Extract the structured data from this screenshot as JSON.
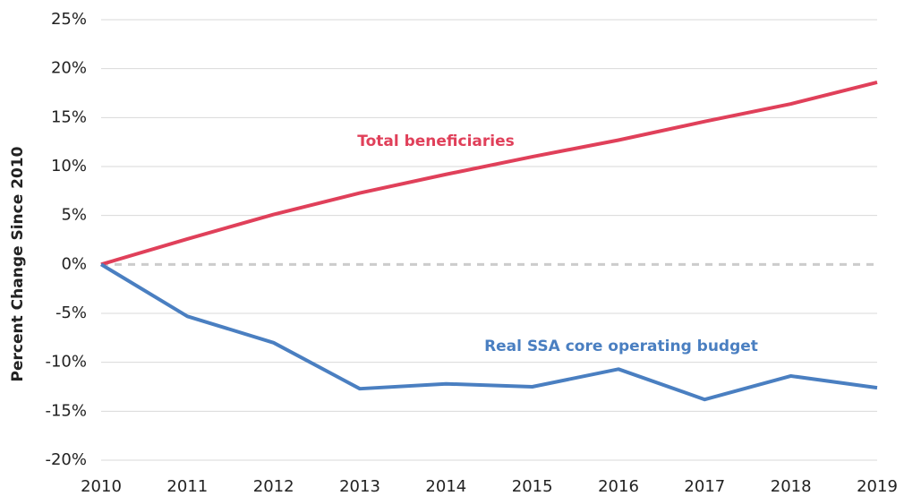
{
  "chart_data": {
    "type": "line",
    "y_axis_label": "Percent Change Since 2010",
    "x": [
      2010,
      2011,
      2012,
      2013,
      2014,
      2015,
      2016,
      2017,
      2018,
      2019
    ],
    "xlim": [
      2010,
      2019
    ],
    "xticks": [
      2010,
      2011,
      2012,
      2013,
      2014,
      2015,
      2016,
      2017,
      2018,
      2019
    ],
    "ylim": [
      -20,
      25
    ],
    "yticks": [
      {
        "value": -20,
        "label": "-20%"
      },
      {
        "value": -15,
        "label": "-15%"
      },
      {
        "value": -10,
        "label": "-10%"
      },
      {
        "value": -5,
        "label": "-5%"
      },
      {
        "value": 0,
        "label": "0%"
      },
      {
        "value": 5,
        "label": "5%"
      },
      {
        "value": 10,
        "label": "10%"
      },
      {
        "value": 15,
        "label": "15%"
      },
      {
        "value": 20,
        "label": "20%"
      },
      {
        "value": 25,
        "label": "25%"
      }
    ],
    "grid": true,
    "series": [
      {
        "name": "Total beneficiaries",
        "color": "#e0405a",
        "values": [
          0,
          2.6,
          5.1,
          7.3,
          9.2,
          11.0,
          12.7,
          14.6,
          16.4,
          18.6
        ]
      },
      {
        "name": "Real SSA core operating budget",
        "color": "#4a7fc1",
        "values": [
          0,
          -5.3,
          -8.0,
          -12.7,
          -12.2,
          -12.5,
          -10.7,
          -13.8,
          -11.4,
          -12.6
        ]
      }
    ]
  }
}
